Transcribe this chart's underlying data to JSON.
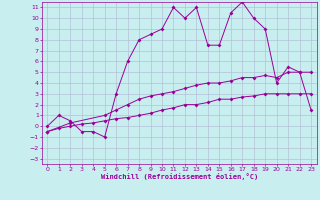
{
  "xlabel": "Windchill (Refroidissement éolien,°C)",
  "bg_color": "#c8eef0",
  "grid_color": "#b0b8d0",
  "line_color": "#990099",
  "xlim": [
    -0.5,
    23.5
  ],
  "ylim": [
    -3.5,
    11.5
  ],
  "xticks": [
    0,
    1,
    2,
    3,
    4,
    5,
    6,
    7,
    8,
    9,
    10,
    11,
    12,
    13,
    14,
    15,
    16,
    17,
    18,
    19,
    20,
    21,
    22,
    23
  ],
  "yticks": [
    -3,
    -2,
    -1,
    0,
    1,
    2,
    3,
    4,
    5,
    6,
    7,
    8,
    9,
    10,
    11
  ],
  "line1_x": [
    0,
    1,
    2,
    3,
    4,
    5,
    6,
    7,
    8,
    9,
    10,
    11,
    12,
    13,
    14,
    15,
    16,
    17,
    18,
    19,
    20,
    21,
    22,
    23
  ],
  "line1_y": [
    0.0,
    1.0,
    0.5,
    -0.5,
    -0.5,
    -1.0,
    3.0,
    6.0,
    8.0,
    8.5,
    9.0,
    11.0,
    10.0,
    11.0,
    7.5,
    7.5,
    10.5,
    11.5,
    10.0,
    9.0,
    4.0,
    5.5,
    5.0,
    1.5
  ],
  "line2_x": [
    0,
    2,
    5,
    6,
    7,
    8,
    9,
    10,
    11,
    12,
    13,
    14,
    15,
    16,
    17,
    18,
    19,
    20,
    21,
    22,
    23
  ],
  "line2_y": [
    -0.5,
    0.3,
    1.0,
    1.5,
    2.0,
    2.5,
    2.8,
    3.0,
    3.2,
    3.5,
    3.8,
    4.0,
    4.0,
    4.2,
    4.5,
    4.5,
    4.7,
    4.5,
    5.0,
    5.0,
    5.0
  ],
  "line3_x": [
    0,
    1,
    2,
    3,
    4,
    5,
    6,
    7,
    8,
    9,
    10,
    11,
    12,
    13,
    14,
    15,
    16,
    17,
    18,
    19,
    20,
    21,
    22,
    23
  ],
  "line3_y": [
    -0.5,
    -0.2,
    0.0,
    0.2,
    0.3,
    0.5,
    0.7,
    0.8,
    1.0,
    1.2,
    1.5,
    1.7,
    2.0,
    2.0,
    2.2,
    2.5,
    2.5,
    2.7,
    2.8,
    3.0,
    3.0,
    3.0,
    3.0,
    3.0
  ]
}
